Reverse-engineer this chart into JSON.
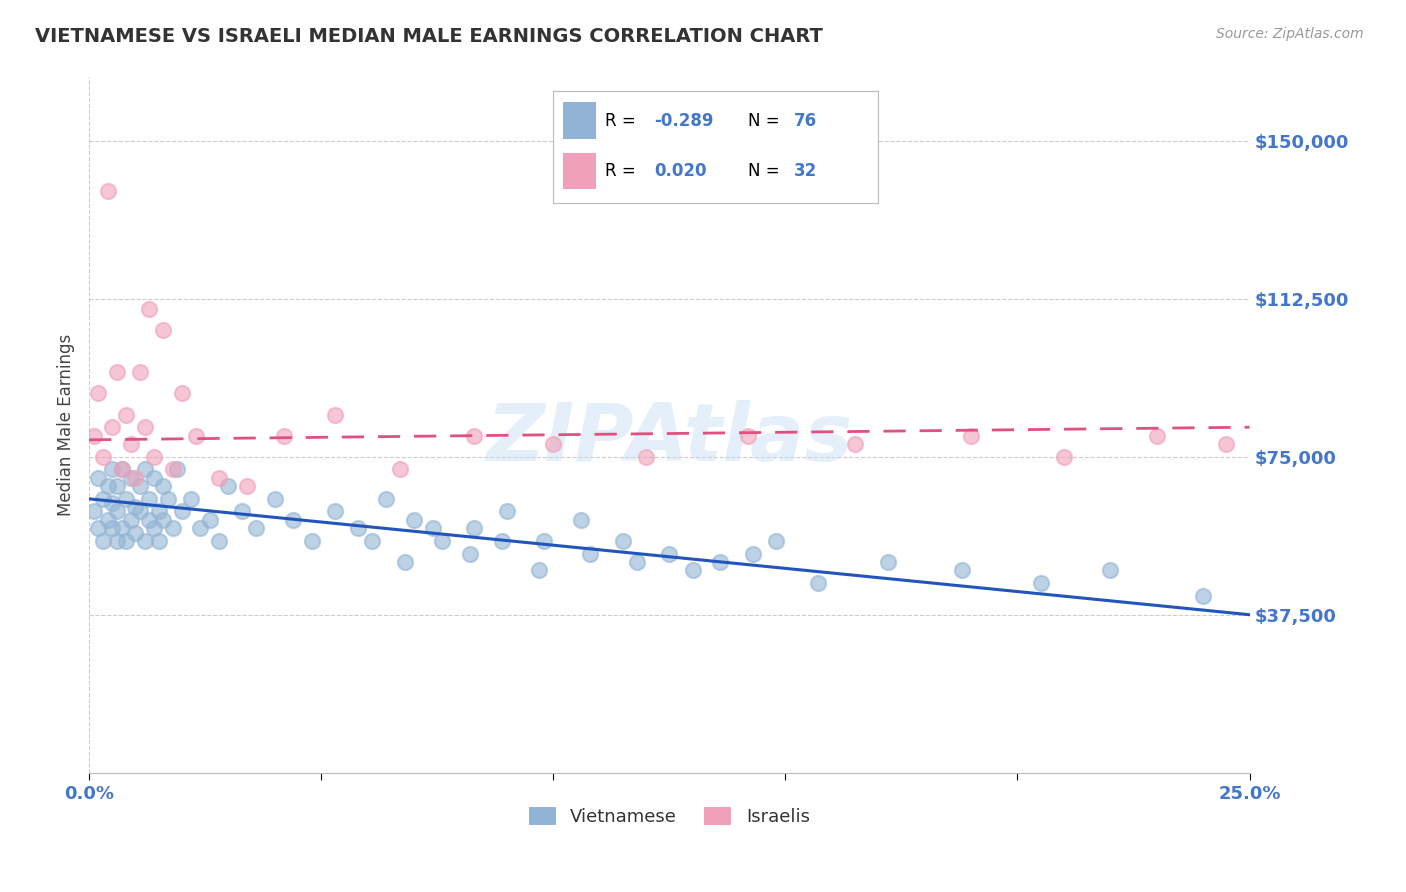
{
  "title": "VIETNAMESE VS ISRAELI MEDIAN MALE EARNINGS CORRELATION CHART",
  "source_text": "Source: ZipAtlas.com",
  "ylabel": "Median Male Earnings",
  "xmin": 0.0,
  "xmax": 0.25,
  "ymin": 0,
  "ymax": 165000,
  "yticks": [
    37500,
    75000,
    112500,
    150000
  ],
  "ytick_labels": [
    "$37,500",
    "$75,000",
    "$112,500",
    "$150,000"
  ],
  "xticks": [
    0.0,
    0.05,
    0.1,
    0.15,
    0.2,
    0.25
  ],
  "xtick_labels": [
    "0.0%",
    "",
    "",
    "",
    "",
    "25.0%"
  ],
  "watermark": "ZIPAtlas",
  "vietnamese_color": "#92b4d4",
  "israeli_color": "#f0a0b8",
  "vietnamese_line_color": "#2255bb",
  "israeli_line_color": "#e05080",
  "background_color": "#ffffff",
  "grid_color": "#cccccc",
  "tick_color": "#4477cc",
  "vietnamese_x": [
    0.001,
    0.002,
    0.002,
    0.003,
    0.003,
    0.004,
    0.004,
    0.005,
    0.005,
    0.005,
    0.006,
    0.006,
    0.006,
    0.007,
    0.007,
    0.008,
    0.008,
    0.009,
    0.009,
    0.01,
    0.01,
    0.011,
    0.011,
    0.012,
    0.012,
    0.013,
    0.013,
    0.014,
    0.014,
    0.015,
    0.015,
    0.016,
    0.016,
    0.017,
    0.018,
    0.019,
    0.02,
    0.022,
    0.024,
    0.026,
    0.028,
    0.03,
    0.033,
    0.036,
    0.04,
    0.044,
    0.048,
    0.053,
    0.058,
    0.064,
    0.07,
    0.076,
    0.083,
    0.09,
    0.098,
    0.106,
    0.115,
    0.125,
    0.136,
    0.148,
    0.061,
    0.068,
    0.074,
    0.082,
    0.089,
    0.097,
    0.108,
    0.118,
    0.13,
    0.143,
    0.157,
    0.172,
    0.188,
    0.205,
    0.22,
    0.24
  ],
  "vietnamese_y": [
    62000,
    58000,
    70000,
    65000,
    55000,
    68000,
    60000,
    72000,
    58000,
    64000,
    55000,
    68000,
    62000,
    58000,
    72000,
    65000,
    55000,
    70000,
    60000,
    63000,
    57000,
    68000,
    62000,
    55000,
    72000,
    60000,
    65000,
    58000,
    70000,
    62000,
    55000,
    68000,
    60000,
    65000,
    58000,
    72000,
    62000,
    65000,
    58000,
    60000,
    55000,
    68000,
    62000,
    58000,
    65000,
    60000,
    55000,
    62000,
    58000,
    65000,
    60000,
    55000,
    58000,
    62000,
    55000,
    60000,
    55000,
    52000,
    50000,
    55000,
    55000,
    50000,
    58000,
    52000,
    55000,
    48000,
    52000,
    50000,
    48000,
    52000,
    45000,
    50000,
    48000,
    45000,
    48000,
    42000
  ],
  "israeli_x": [
    0.001,
    0.002,
    0.003,
    0.004,
    0.005,
    0.006,
    0.007,
    0.008,
    0.009,
    0.01,
    0.011,
    0.012,
    0.013,
    0.014,
    0.016,
    0.018,
    0.02,
    0.023,
    0.028,
    0.034,
    0.042,
    0.053,
    0.067,
    0.083,
    0.1,
    0.12,
    0.142,
    0.165,
    0.19,
    0.21,
    0.23,
    0.245
  ],
  "israeli_y": [
    80000,
    90000,
    75000,
    138000,
    82000,
    95000,
    72000,
    85000,
    78000,
    70000,
    95000,
    82000,
    110000,
    75000,
    105000,
    72000,
    90000,
    80000,
    70000,
    68000,
    80000,
    85000,
    72000,
    80000,
    78000,
    75000,
    80000,
    78000,
    80000,
    75000,
    80000,
    78000
  ],
  "viet_trend_y0": 65000,
  "viet_trend_y1": 37500,
  "isr_trend_y0": 79000,
  "isr_trend_y1": 82000
}
